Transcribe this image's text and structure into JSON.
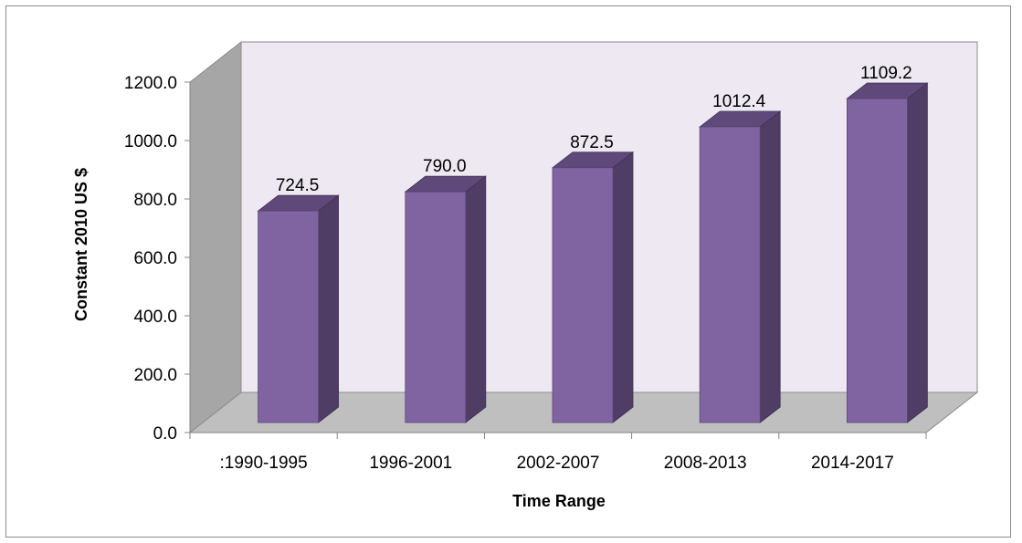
{
  "chart_data": {
    "type": "bar",
    "title": "",
    "xlabel": "Time Range",
    "ylabel": "Constant 2010 US $",
    "categories": [
      ":1990-1995",
      "1996-2001",
      "2002-2007",
      "2008-2013",
      "2014-2017"
    ],
    "values": [
      724.5,
      790.0,
      872.5,
      1012.4,
      1109.2
    ],
    "value_labels": [
      "724.5",
      "790.0",
      "872.5",
      "1012.4",
      "1109.2"
    ],
    "ylim": [
      0,
      1200
    ],
    "yticks": [
      "0.0",
      "200.0",
      "400.0",
      "600.0",
      "800.0",
      "1000.0",
      "1200.0"
    ],
    "grid": false,
    "legend": "none",
    "three_d": true,
    "colors": {
      "bar_front": "#8064a2",
      "bar_top": "#5f497a",
      "bar_side": "#4f3d66",
      "back_wall": "#ede8f1",
      "side_wall": "#a6a6a6",
      "floor": "#bfbfbf"
    }
  }
}
